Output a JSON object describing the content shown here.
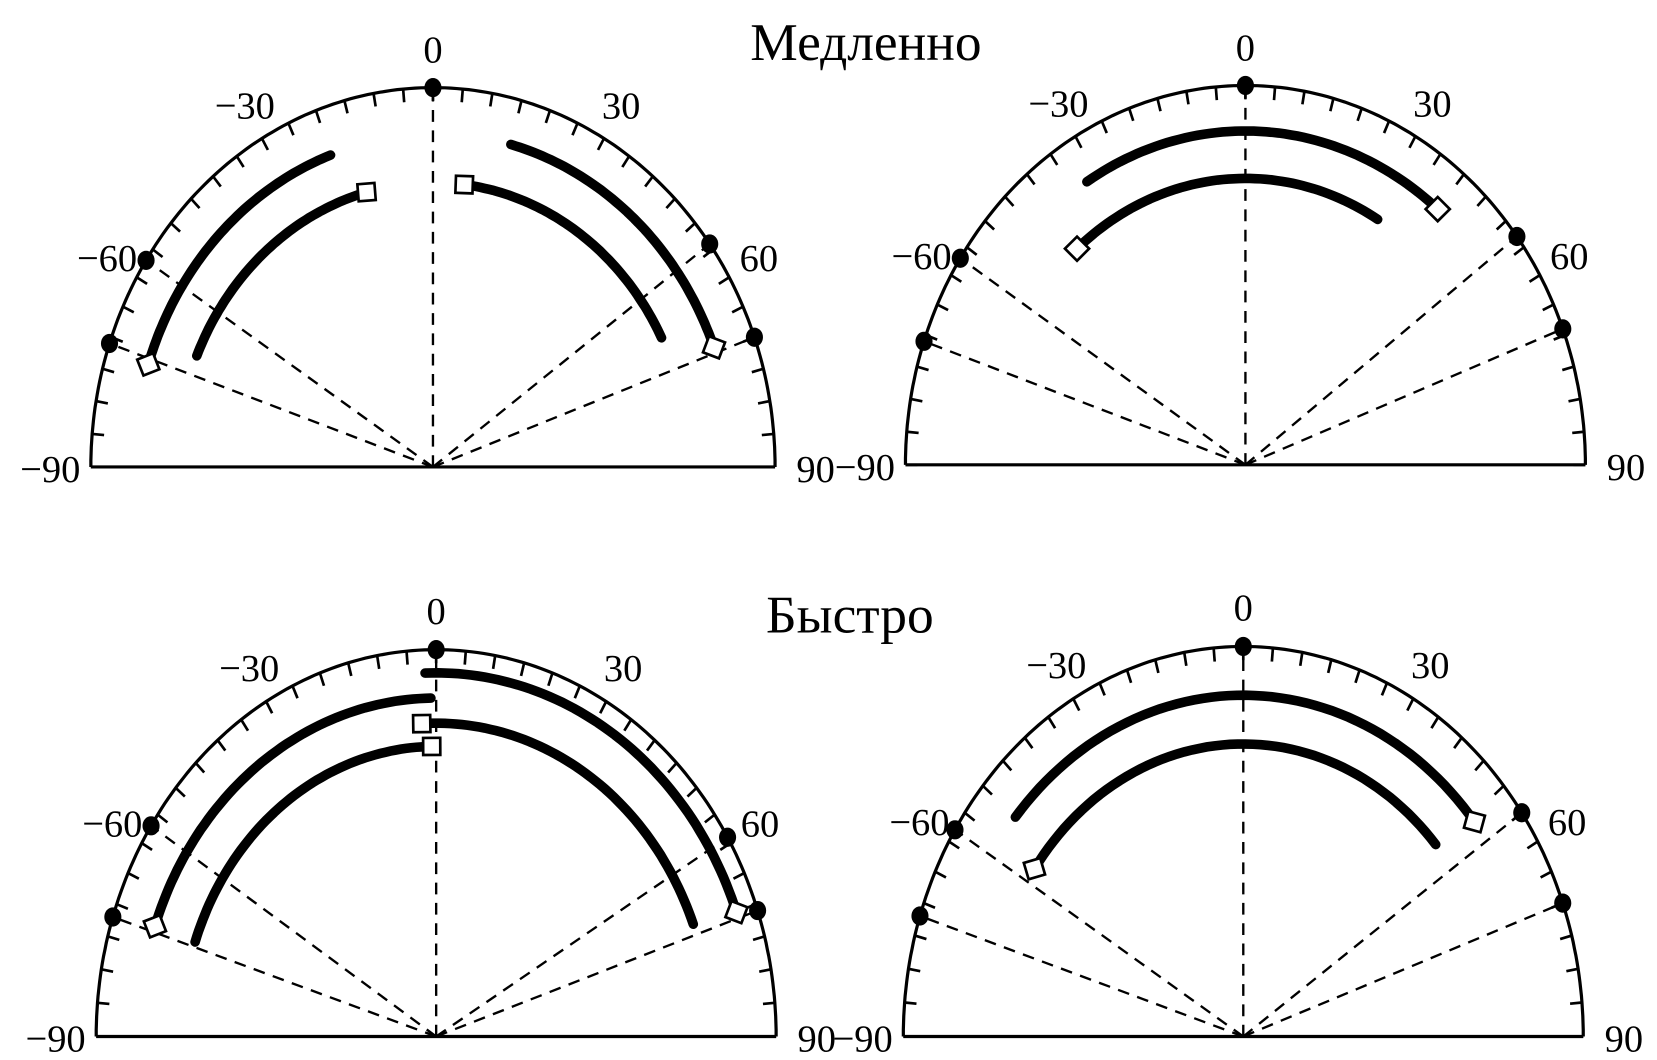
{
  "titles": {
    "top": "Медленно",
    "bottom": "Быстро"
  },
  "chart_data": [
    {
      "type": "polar-semicircle",
      "row": "top",
      "col": "left",
      "theta_range": [
        -90,
        90
      ],
      "tick_step": 5,
      "tick_labels": [
        "−90",
        "−60",
        "−30",
        "0",
        "30",
        "60",
        "90"
      ],
      "tick_label_values": [
        -90,
        -60,
        -30,
        0,
        30,
        60,
        90
      ],
      "dots": [
        0,
        -57,
        -71,
        54,
        70
      ],
      "dashed_rays": [
        0,
        -57,
        -71,
        54,
        70
      ],
      "arcs": [
        {
          "r": 0.875,
          "theta_start": -72,
          "theta_end": -20,
          "marker_end": "square",
          "marker_at": -72
        },
        {
          "r": 0.75,
          "theta_start": -67,
          "theta_end": -15,
          "marker_at": -15,
          "marker_end": "square"
        },
        {
          "r": 0.88,
          "theta_start": 15,
          "theta_end": 69,
          "marker_at": 69,
          "marker_end": "square"
        },
        {
          "r": 0.75,
          "theta_start": 7,
          "theta_end": 63,
          "marker_at": 7,
          "marker_end": "square"
        }
      ]
    },
    {
      "type": "polar-semicircle",
      "row": "top",
      "col": "right",
      "theta_range": [
        -90,
        90
      ],
      "tick_step": 5,
      "tick_labels": [
        "−90",
        "−60",
        "−30",
        "0",
        "30",
        "60",
        "90"
      ],
      "tick_label_values": [
        -90,
        -60,
        -30,
        0,
        30,
        60,
        90
      ],
      "dots": [
        0,
        -57,
        -71,
        53,
        69
      ],
      "dashed_rays": [
        0,
        -57,
        -71,
        53,
        69
      ],
      "arcs": [
        {
          "r": 0.88,
          "theta_start": -32,
          "theta_end": 40,
          "marker_at": 40,
          "marker_end": "diamond"
        },
        {
          "r": 0.755,
          "theta_start": -41,
          "theta_end": 31,
          "marker_at": -41,
          "marker_end": "diamond"
        }
      ]
    },
    {
      "type": "polar-semicircle",
      "row": "bottom",
      "col": "left",
      "theta_range": [
        -90,
        90
      ],
      "tick_step": 5,
      "tick_labels": [
        "−90",
        "−60",
        "−30",
        "0",
        "30",
        "60",
        "90"
      ],
      "tick_label_values": [
        -90,
        -60,
        -30,
        0,
        30,
        60,
        90
      ],
      "dots": [
        0,
        -57,
        -72,
        59,
        71
      ],
      "dashed_rays": [
        0,
        -57,
        -72,
        59,
        71
      ],
      "arcs": [
        {
          "r": 0.94,
          "theta_start": -2,
          "theta_end": 70,
          "marker_at": 70,
          "marker_end": "square"
        },
        {
          "r": 0.81,
          "theta_start": -3,
          "theta_end": 69,
          "marker_at": -3,
          "marker_end": "square"
        },
        {
          "r": 0.875,
          "theta_start": -71,
          "theta_end": -1,
          "marker_at": -71,
          "marker_end": "square"
        },
        {
          "r": 0.75,
          "theta_start": -71,
          "theta_end": -1,
          "marker_at": -1,
          "marker_end": "square"
        }
      ]
    },
    {
      "type": "polar-semicircle",
      "row": "bottom",
      "col": "right",
      "theta_range": [
        -90,
        90
      ],
      "tick_step": 5,
      "tick_labels": [
        "−90",
        "−60",
        "−30",
        "0",
        "30",
        "60",
        "90"
      ],
      "tick_label_values": [
        -90,
        -60,
        -30,
        0,
        30,
        60,
        90
      ],
      "dots": [
        0,
        -58,
        -72,
        55,
        70
      ],
      "dashed_rays": [
        0,
        -58,
        -72,
        55,
        70
      ],
      "arcs": [
        {
          "r": 0.875,
          "theta_start": -50,
          "theta_end": 51,
          "marker_at": 51,
          "marker_end": "square"
        },
        {
          "r": 0.75,
          "theta_start": -55,
          "theta_end": 49,
          "marker_at": -55,
          "marker_end": "square"
        }
      ]
    }
  ]
}
